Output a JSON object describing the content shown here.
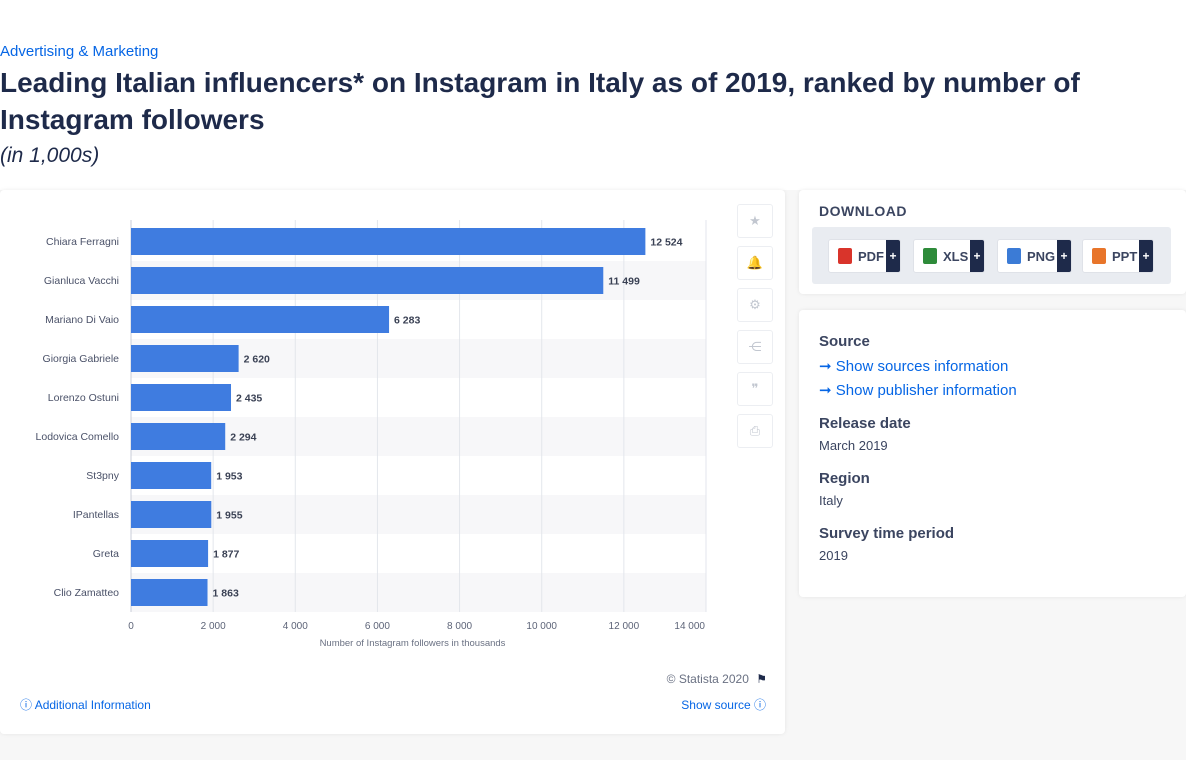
{
  "breadcrumb": "Advertising & Marketing",
  "title": "Leading Italian influencers* on Instagram in Italy as of 2019, ranked by number of Instagram followers",
  "subtitle": "(in 1,000s)",
  "chart_data": {
    "type": "bar",
    "orientation": "horizontal",
    "categories": [
      "Chiara Ferragni",
      "Gianluca Vacchi",
      "Mariano Di Vaio",
      "Giorgia Gabriele",
      "Lorenzo Ostuni",
      "Lodovica Comello",
      "St3pny",
      "IPantellas",
      "Greta",
      "Clio Zamatteo"
    ],
    "values": [
      12524,
      11499,
      6283,
      2620,
      2435,
      2294,
      1953,
      1955,
      1877,
      1863
    ],
    "value_labels": [
      "12 524",
      "11 499",
      "6 283",
      "2 620",
      "2 435",
      "2 294",
      "1 953",
      "1 955",
      "1 877",
      "1 863"
    ],
    "xlabel": "Number of Instagram followers in thousands",
    "xlim": [
      0,
      14000
    ],
    "ticks": [
      0,
      2000,
      4000,
      6000,
      8000,
      10000,
      12000,
      14000
    ],
    "tick_labels": [
      "0",
      "2 000",
      "4 000",
      "6 000",
      "8 000",
      "10 000",
      "12 000",
      "14 000"
    ],
    "bar_color": "#3f7ce0",
    "grid": true,
    "legend": false
  },
  "tools": [
    {
      "icon": "star-icon",
      "glyph": "★"
    },
    {
      "icon": "bell-icon",
      "glyph": "🔔"
    },
    {
      "icon": "gear-icon",
      "glyph": "⚙"
    },
    {
      "icon": "share-icon",
      "glyph": "⋲"
    },
    {
      "icon": "quote-icon",
      "glyph": "❞"
    },
    {
      "icon": "print-icon",
      "glyph": "⎙"
    }
  ],
  "copyright": "© Statista 2020",
  "flag_icon": "⚑",
  "additional_info": "Additional Information",
  "show_source": "Show source",
  "download": {
    "title": "DOWNLOAD",
    "buttons": [
      {
        "label": "PDF",
        "color": "#d9342b",
        "icon": "pdf-file-icon"
      },
      {
        "label": "XLS",
        "color": "#2e8b3a",
        "icon": "xls-file-icon"
      },
      {
        "label": "PNG",
        "color": "#3b7bd6",
        "icon": "png-file-icon"
      },
      {
        "label": "PPT",
        "color": "#e8752a",
        "icon": "ppt-file-icon"
      }
    ],
    "plus": "+"
  },
  "info": {
    "source_heading": "Source",
    "show_sources": "Show sources information",
    "show_publisher": "Show publisher information",
    "release_heading": "Release date",
    "release_value": "March 2019",
    "region_heading": "Region",
    "region_value": "Italy",
    "survey_heading": "Survey time period",
    "survey_value": "2019"
  }
}
